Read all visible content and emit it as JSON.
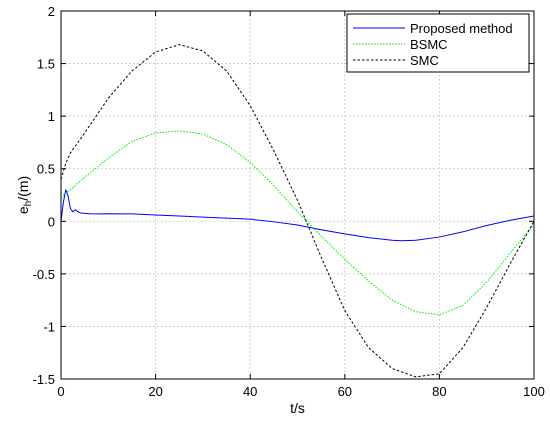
{
  "chart_data": {
    "type": "line",
    "title": "",
    "xlabel": "t/s",
    "ylabel_main": "e",
    "ylabel_sub": "h",
    "ylabel_rest": "/(m)",
    "xlim": [
      0,
      100
    ],
    "ylim": [
      -1.5,
      2
    ],
    "x_ticks": [
      0,
      20,
      40,
      60,
      80,
      100
    ],
    "y_ticks": [
      -1.5,
      -1,
      -0.5,
      0,
      0.5,
      1,
      1.5,
      2
    ],
    "x_tick_labels": [
      "0",
      "20",
      "40",
      "60",
      "80",
      "100"
    ],
    "y_tick_labels": [
      "-1.5",
      "-1",
      "-0.5",
      "0",
      "0.5",
      "1",
      "1.5",
      "2"
    ],
    "grid": true,
    "legend_position": "top-right",
    "series": [
      {
        "name": "Proposed method",
        "color": "#0000ff",
        "dash": "solid",
        "x": [
          0,
          0.5,
          1,
          1.5,
          2,
          2.5,
          3,
          3.5,
          4,
          5,
          6,
          8,
          10,
          15,
          20,
          25,
          30,
          35,
          40,
          45,
          50,
          55,
          60,
          65,
          70,
          72,
          75,
          80,
          85,
          90,
          95,
          100
        ],
        "y": [
          0,
          0.18,
          0.3,
          0.24,
          0.12,
          0.09,
          0.11,
          0.095,
          0.08,
          0.075,
          0.072,
          0.07,
          0.072,
          0.07,
          0.06,
          0.05,
          0.04,
          0.03,
          0.02,
          -0.005,
          -0.035,
          -0.08,
          -0.12,
          -0.155,
          -0.18,
          -0.185,
          -0.18,
          -0.15,
          -0.1,
          -0.04,
          0.01,
          0.05
        ]
      },
      {
        "name": "BSMC",
        "color": "#00ee00",
        "dash": "dotted",
        "x": [
          0,
          1,
          2,
          5,
          10,
          15,
          20,
          25,
          30,
          35,
          40,
          45,
          50,
          55,
          60,
          65,
          70,
          75,
          80,
          85,
          90,
          95,
          100
        ],
        "y": [
          0.22,
          0.27,
          0.3,
          0.42,
          0.6,
          0.76,
          0.84,
          0.86,
          0.83,
          0.73,
          0.56,
          0.34,
          0.09,
          -0.14,
          -0.36,
          -0.57,
          -0.75,
          -0.86,
          -0.89,
          -0.8,
          -0.58,
          -0.3,
          -0.03
        ]
      },
      {
        "name": "SMC",
        "color": "#000000",
        "dash": "dashed",
        "x": [
          0,
          1,
          2,
          5,
          10,
          15,
          20,
          25,
          30,
          35,
          40,
          45,
          50,
          55,
          60,
          65,
          70,
          75,
          80,
          85,
          90,
          95,
          100
        ],
        "y": [
          0.4,
          0.55,
          0.65,
          0.84,
          1.17,
          1.43,
          1.61,
          1.68,
          1.62,
          1.43,
          1.1,
          0.67,
          0.2,
          -0.34,
          -0.85,
          -1.2,
          -1.4,
          -1.48,
          -1.45,
          -1.2,
          -0.82,
          -0.4,
          0.0
        ]
      }
    ]
  }
}
